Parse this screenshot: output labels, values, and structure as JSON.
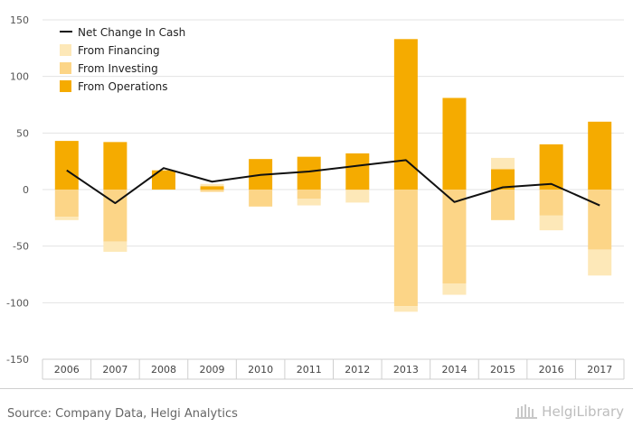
{
  "chart_data": {
    "type": "bar",
    "categories": [
      "2006",
      "2007",
      "2008",
      "2009",
      "2010",
      "2011",
      "2012",
      "2013",
      "2014",
      "2015",
      "2016",
      "2017"
    ],
    "series": [
      {
        "name": "From Operations",
        "type": "bar",
        "color": "#f5ab00",
        "values": [
          43,
          42,
          17,
          3,
          27,
          29,
          32,
          133,
          81,
          18,
          40,
          60
        ]
      },
      {
        "name": "From Investing",
        "type": "bar",
        "color": "#fcd587",
        "values": [
          -24,
          -46,
          0,
          -2,
          -15,
          -8,
          -0.5,
          -103,
          -83,
          -27,
          -23,
          -53
        ]
      },
      {
        "name": "From Financing",
        "type": "bar",
        "color": "#fde8b8",
        "values": [
          -3,
          -9,
          0,
          2,
          0,
          -6,
          -11,
          -5,
          -10,
          10,
          -13,
          -23
        ]
      },
      {
        "name": "Net Change In Cash",
        "type": "line",
        "color": "#111111",
        "values": [
          17,
          -12,
          19,
          7,
          13,
          16,
          21,
          26,
          -11,
          2,
          5,
          -14
        ]
      }
    ],
    "legend_order": [
      "Net Change In Cash",
      "From Financing",
      "From Investing",
      "From Operations"
    ],
    "yticks": [
      150,
      100,
      50,
      0,
      -50,
      -100,
      -150
    ],
    "ylim": [
      -150,
      150
    ],
    "grid": true,
    "legend_position": "top-left"
  },
  "footer": {
    "source": "Source: Company Data, Helgi Analytics",
    "brand": "HelgiLibrary"
  }
}
